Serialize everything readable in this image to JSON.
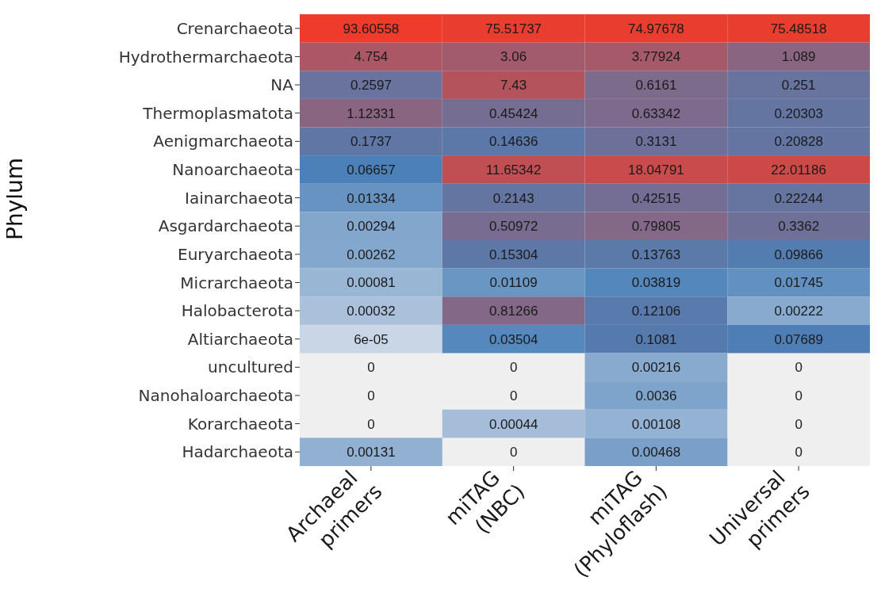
{
  "chart_data": {
    "type": "heatmap",
    "ylabel": "Phylum",
    "categories": [
      "Archaeal\nprimers",
      "miTAG\n(NBC)",
      "miTAG\n(Phyloflash)",
      "Universal\nprimers"
    ],
    "y_categories": [
      "Crenarchaeota",
      "Hydrothermarchaeota",
      "NA",
      "Thermoplasmatota",
      "Aenigmarchaeota",
      "Nanoarchaeota",
      "Iainarchaeota",
      "Asgardarchaeota",
      "Euryarchaeota",
      "Micrarchaeota",
      "Halobacterota",
      "Altiarchaeota",
      "uncultured",
      "Nanohaloarchaeota",
      "Korarchaeota",
      "Hadarchaeota"
    ],
    "cells": [
      [
        93.60558,
        75.51737,
        74.97678,
        75.48518
      ],
      [
        4.754,
        3.06,
        3.77924,
        1.089
      ],
      [
        0.2597,
        7.43,
        0.6161,
        0.251
      ],
      [
        1.12331,
        0.45424,
        0.63342,
        0.20303
      ],
      [
        0.1737,
        0.14636,
        0.3131,
        0.20828
      ],
      [
        0.06657,
        11.65342,
        18.04791,
        22.01186
      ],
      [
        0.01334,
        0.2143,
        0.42515,
        0.22244
      ],
      [
        0.00294,
        0.50972,
        0.79805,
        0.3362
      ],
      [
        0.00262,
        0.15304,
        0.13763,
        0.09866
      ],
      [
        0.00081,
        0.01109,
        0.03819,
        0.01745
      ],
      [
        0.00032,
        0.81266,
        0.12106,
        0.00222
      ],
      [
        6e-05,
        0.03504,
        0.1081,
        0.07689
      ],
      [
        0,
        0,
        0.00216,
        0
      ],
      [
        0,
        0,
        0.0036,
        0
      ],
      [
        0,
        0.00044,
        0.00108,
        0
      ],
      [
        0.00131,
        0,
        0.00468,
        0
      ]
    ],
    "cell_labels": [
      [
        "93.60558",
        "75.51737",
        "74.97678",
        "75.48518"
      ],
      [
        "4.754",
        "3.06",
        "3.77924",
        "1.089"
      ],
      [
        "0.2597",
        "7.43",
        "0.6161",
        "0.251"
      ],
      [
        "1.12331",
        "0.45424",
        "0.63342",
        "0.20303"
      ],
      [
        "0.1737",
        "0.14636",
        "0.3131",
        "0.20828"
      ],
      [
        "0.06657",
        "11.65342",
        "18.04791",
        "22.01186"
      ],
      [
        "0.01334",
        "0.2143",
        "0.42515",
        "0.22244"
      ],
      [
        "0.00294",
        "0.50972",
        "0.79805",
        "0.3362"
      ],
      [
        "0.00262",
        "0.15304",
        "0.13763",
        "0.09866"
      ],
      [
        "0.00081",
        "0.01109",
        "0.03819",
        "0.01745"
      ],
      [
        "0.00032",
        "0.81266",
        "0.12106",
        "0.00222"
      ],
      [
        "6e-05",
        "0.03504",
        "0.1081",
        "0.07689"
      ],
      [
        "0",
        "0",
        "0.00216",
        "0"
      ],
      [
        "0",
        "0",
        "0.0036",
        "0"
      ],
      [
        "0",
        "0.00044",
        "0.00108",
        "0"
      ],
      [
        "0.00131",
        "0",
        "0.00468",
        "0"
      ]
    ],
    "colors": [
      "#c9d6e6",
      "#4a80b8",
      "#ee3b2b"
    ]
  }
}
